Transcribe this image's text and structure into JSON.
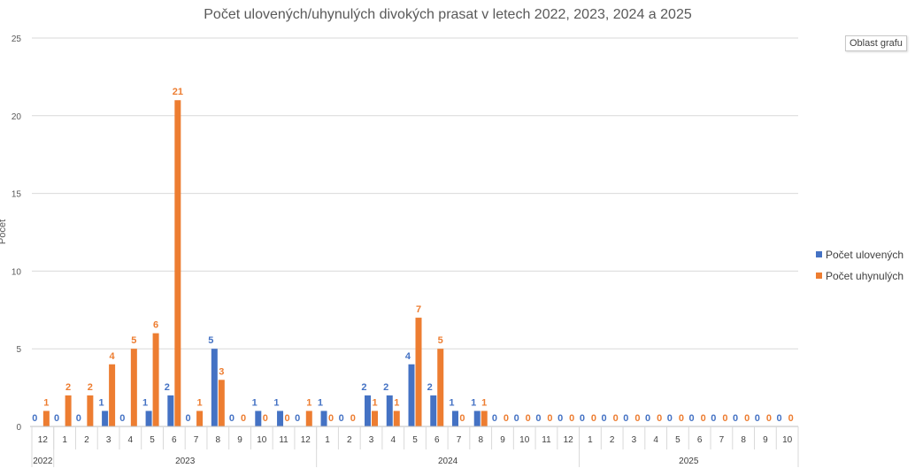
{
  "tooltip": "Oblast grafu",
  "chart_data": {
    "type": "bar",
    "title": "Počet ulovených/uhynulých divokých prasat v letech 2022, 2023, 2024 a 2025",
    "ylabel": "Počet",
    "xlabel": "",
    "ylim": [
      0,
      25
    ],
    "yticks": [
      0,
      5,
      10,
      15,
      20,
      25
    ],
    "grid": true,
    "legend_position": "right",
    "categories": [
      "12",
      "1",
      "2",
      "3",
      "4",
      "5",
      "6",
      "7",
      "8",
      "9",
      "10",
      "11",
      "12",
      "1",
      "2",
      "3",
      "4",
      "5",
      "6",
      "7",
      "8",
      "9",
      "10",
      "11",
      "12",
      "1",
      "2",
      "3",
      "4",
      "5",
      "6",
      "7",
      "8",
      "9",
      "10"
    ],
    "groups": [
      {
        "label": "2022",
        "count": 1
      },
      {
        "label": "2023",
        "count": 12
      },
      {
        "label": "2024",
        "count": 12
      },
      {
        "label": "2025",
        "count": 10
      }
    ],
    "series": [
      {
        "name": "Počet ulovených",
        "color": "#4472C4",
        "values": [
          0,
          0,
          0,
          1,
          0,
          1,
          2,
          0,
          5,
          0,
          1,
          1,
          0,
          1,
          0,
          2,
          2,
          4,
          2,
          1,
          1,
          0,
          0,
          0,
          0,
          0,
          0,
          0,
          0,
          0,
          0,
          0,
          0,
          0,
          0
        ]
      },
      {
        "name": "Počet uhynulých",
        "color": "#ED7D31",
        "values": [
          1,
          2,
          2,
          4,
          5,
          6,
          21,
          1,
          3,
          0,
          0,
          0,
          1,
          0,
          0,
          1,
          1,
          7,
          5,
          0,
          1,
          0,
          0,
          0,
          0,
          0,
          0,
          0,
          0,
          0,
          0,
          0,
          0,
          0,
          0
        ]
      }
    ]
  }
}
